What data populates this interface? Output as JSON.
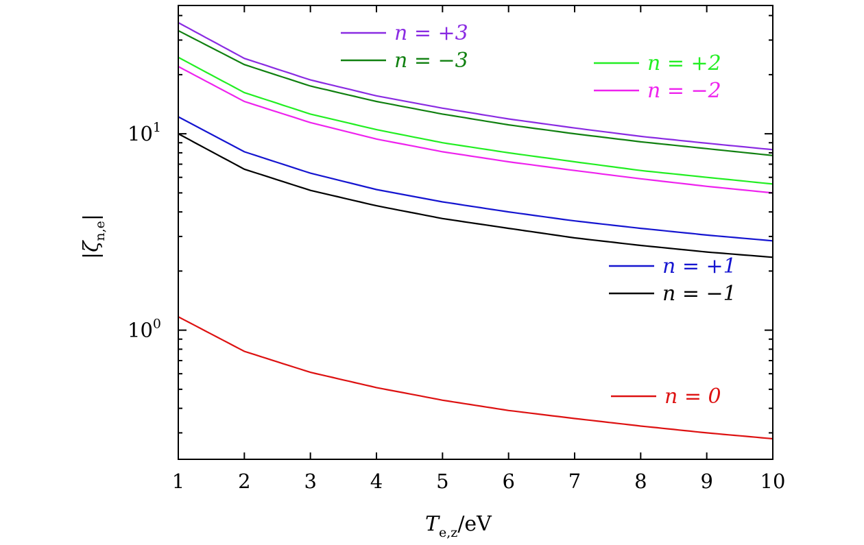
{
  "chart_data": {
    "type": "line",
    "xlabel": "T_{e,z}/eV",
    "ylabel": "|ζ_{n,e}|",
    "xlim": [
      1,
      10
    ],
    "ylim": [
      0.22,
      45
    ],
    "yscale": "log",
    "grid": false,
    "x_ticks": [
      1,
      2,
      3,
      4,
      5,
      6,
      7,
      8,
      9,
      10
    ],
    "y_ticks": [
      {
        "value": 1,
        "base": "10",
        "exp": "0"
      },
      {
        "value": 10,
        "base": "10",
        "exp": "1"
      }
    ],
    "x": [
      1,
      2,
      3,
      4,
      5,
      6,
      7,
      8,
      9,
      10
    ],
    "series": [
      {
        "name": "n = +3",
        "color": "#8a2be2",
        "values": [
          36.8,
          24.2,
          18.8,
          15.6,
          13.5,
          11.9,
          10.7,
          9.7,
          8.95,
          8.3
        ]
      },
      {
        "name": "n = −3",
        "color": "#108010",
        "values": [
          33.5,
          22.5,
          17.5,
          14.6,
          12.6,
          11.1,
          10.0,
          9.1,
          8.4,
          7.75
        ]
      },
      {
        "name": "n = +2",
        "color": "#22ee22",
        "values": [
          24.5,
          16.2,
          12.6,
          10.5,
          9.0,
          8.0,
          7.2,
          6.5,
          6.0,
          5.55
        ]
      },
      {
        "name": "n = −2",
        "color": "#ee22ee",
        "values": [
          22.0,
          14.6,
          11.4,
          9.4,
          8.1,
          7.2,
          6.5,
          5.9,
          5.4,
          5.0
        ]
      },
      {
        "name": "n = +1",
        "color": "#1515d0",
        "values": [
          12.2,
          8.1,
          6.3,
          5.2,
          4.5,
          4.0,
          3.6,
          3.3,
          3.05,
          2.85
        ]
      },
      {
        "name": "n = −1",
        "color": "#000000",
        "values": [
          10.0,
          6.6,
          5.15,
          4.3,
          3.7,
          3.3,
          2.95,
          2.7,
          2.5,
          2.35
        ]
      },
      {
        "name": "n = 0",
        "color": "#dd1111",
        "values": [
          1.17,
          0.78,
          0.61,
          0.51,
          0.44,
          0.39,
          0.355,
          0.325,
          0.3,
          0.28
        ]
      }
    ],
    "legends": [
      {
        "label": "n = +3",
        "color": "#8a2be2",
        "placement": "top-left"
      },
      {
        "label": "n = −3",
        "color": "#108010",
        "placement": "top-left"
      },
      {
        "label": "n = +2",
        "color": "#22ee22",
        "placement": "top-right"
      },
      {
        "label": "n = −2",
        "color": "#ee22ee",
        "placement": "top-right"
      },
      {
        "label": "n = +1",
        "color": "#1515d0",
        "placement": "middle-right"
      },
      {
        "label": "n = −1",
        "color": "#000000",
        "placement": "middle-right"
      },
      {
        "label": "n = 0",
        "color": "#dd1111",
        "placement": "bottom-right"
      }
    ]
  }
}
